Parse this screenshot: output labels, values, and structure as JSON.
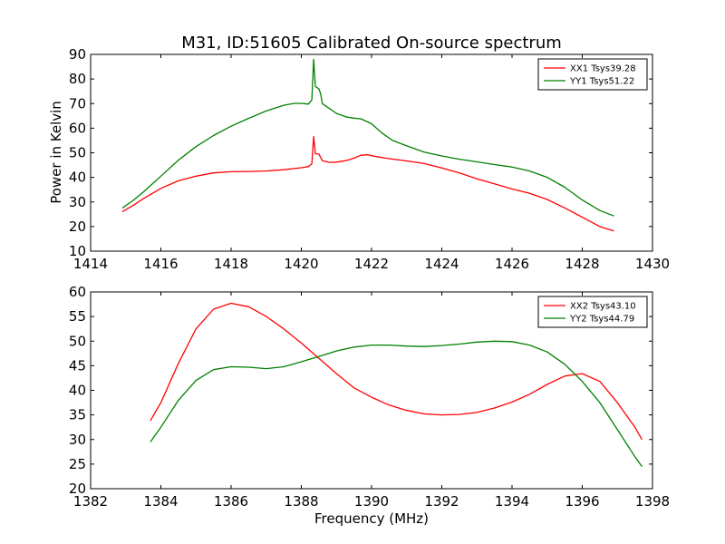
{
  "chart_data": [
    {
      "type": "line",
      "title": "M31, ID:51605 Calibrated On-source spectrum",
      "xlabel": "",
      "ylabel": "Power in Kelvin",
      "xlim": [
        1414,
        1430
      ],
      "ylim": [
        10,
        90
      ],
      "xticks": [
        "1414",
        "1416",
        "1418",
        "1420",
        "1422",
        "1424",
        "1426",
        "1428",
        "1430"
      ],
      "yticks": [
        "10",
        "20",
        "30",
        "40",
        "50",
        "60",
        "70",
        "80",
        "90"
      ],
      "grid": false,
      "legend_position": "top-right",
      "series": [
        {
          "name": "XX1 Tsys39.28",
          "color": "#ff0000",
          "points": [
            [
              1414.9,
              26
            ],
            [
              1415.2,
              28.5
            ],
            [
              1415.5,
              31.3
            ],
            [
              1416.0,
              35.5
            ],
            [
              1416.5,
              38.6
            ],
            [
              1417.0,
              40.5
            ],
            [
              1417.5,
              41.8
            ],
            [
              1418.0,
              42.3
            ],
            [
              1418.5,
              42.4
            ],
            [
              1419.0,
              42.6
            ],
            [
              1419.5,
              43.1
            ],
            [
              1420.0,
              43.9
            ],
            [
              1420.2,
              44.4
            ],
            [
              1420.3,
              45.5
            ],
            [
              1420.35,
              56.6
            ],
            [
              1420.4,
              49.6
            ],
            [
              1420.5,
              49.5
            ],
            [
              1420.6,
              46.8
            ],
            [
              1420.8,
              46.1
            ],
            [
              1421.0,
              46.2
            ],
            [
              1421.3,
              46.9
            ],
            [
              1421.5,
              47.8
            ],
            [
              1421.7,
              49.0
            ],
            [
              1421.9,
              49.2
            ],
            [
              1422.0,
              48.8
            ],
            [
              1422.5,
              47.6
            ],
            [
              1423.0,
              46.7
            ],
            [
              1423.5,
              45.6
            ],
            [
              1424.0,
              43.8
            ],
            [
              1424.5,
              41.8
            ],
            [
              1425.0,
              39.4
            ],
            [
              1425.5,
              37.4
            ],
            [
              1426.0,
              35.3
            ],
            [
              1426.5,
              33.5
            ],
            [
              1427.0,
              31.0
            ],
            [
              1427.5,
              27.6
            ],
            [
              1428.0,
              23.8
            ],
            [
              1428.5,
              20.0
            ],
            [
              1428.9,
              18.2
            ]
          ]
        },
        {
          "name": "YY1 Tsys51.22",
          "color": "#008000",
          "points": [
            [
              1414.9,
              27.5
            ],
            [
              1415.2,
              30.5
            ],
            [
              1415.5,
              34.0
            ],
            [
              1416.0,
              40.5
            ],
            [
              1416.5,
              47.0
            ],
            [
              1417.0,
              52.5
            ],
            [
              1417.5,
              57.0
            ],
            [
              1418.0,
              60.8
            ],
            [
              1418.5,
              64.0
            ],
            [
              1419.0,
              67.0
            ],
            [
              1419.5,
              69.3
            ],
            [
              1419.8,
              70.1
            ],
            [
              1420.0,
              70.1
            ],
            [
              1420.2,
              69.8
            ],
            [
              1420.3,
              71.5
            ],
            [
              1420.35,
              88.0
            ],
            [
              1420.4,
              77.0
            ],
            [
              1420.5,
              76.0
            ],
            [
              1420.55,
              74.0
            ],
            [
              1420.6,
              70.0
            ],
            [
              1420.8,
              68.0
            ],
            [
              1421.0,
              66.0
            ],
            [
              1421.3,
              64.5
            ],
            [
              1421.5,
              64.1
            ],
            [
              1421.7,
              63.8
            ],
            [
              1422.0,
              61.8
            ],
            [
              1422.3,
              58.0
            ],
            [
              1422.6,
              55.0
            ],
            [
              1423.0,
              52.8
            ],
            [
              1423.5,
              50.3
            ],
            [
              1424.0,
              48.7
            ],
            [
              1424.5,
              47.4
            ],
            [
              1425.0,
              46.3
            ],
            [
              1425.5,
              45.2
            ],
            [
              1426.0,
              44.2
            ],
            [
              1426.5,
              42.6
            ],
            [
              1427.0,
              40.0
            ],
            [
              1427.5,
              36.0
            ],
            [
              1428.0,
              30.8
            ],
            [
              1428.5,
              26.5
            ],
            [
              1428.9,
              24.3
            ]
          ]
        }
      ]
    },
    {
      "type": "line",
      "title": "",
      "xlabel": "Frequency (MHz)",
      "ylabel": "",
      "xlim": [
        1382,
        1398
      ],
      "ylim": [
        20,
        60
      ],
      "xticks": [
        "1382",
        "1384",
        "1386",
        "1388",
        "1390",
        "1392",
        "1394",
        "1396",
        "1398"
      ],
      "yticks": [
        "20",
        "25",
        "30",
        "35",
        "40",
        "45",
        "50",
        "55",
        "60"
      ],
      "grid": false,
      "legend_position": "top-right",
      "series": [
        {
          "name": "XX2 Tsys43.10",
          "color": "#ff0000",
          "points": [
            [
              1383.7,
              33.8
            ],
            [
              1384.0,
              37.5
            ],
            [
              1384.5,
              45.5
            ],
            [
              1385.0,
              52.5
            ],
            [
              1385.5,
              56.5
            ],
            [
              1386.0,
              57.7
            ],
            [
              1386.5,
              57.0
            ],
            [
              1387.0,
              55.0
            ],
            [
              1387.5,
              52.5
            ],
            [
              1388.0,
              49.6
            ],
            [
              1388.5,
              46.5
            ],
            [
              1389.0,
              43.4
            ],
            [
              1389.5,
              40.5
            ],
            [
              1390.0,
              38.6
            ],
            [
              1390.5,
              37.0
            ],
            [
              1391.0,
              35.9
            ],
            [
              1391.5,
              35.2
            ],
            [
              1392.0,
              35.0
            ],
            [
              1392.5,
              35.1
            ],
            [
              1393.0,
              35.5
            ],
            [
              1393.5,
              36.4
            ],
            [
              1394.0,
              37.6
            ],
            [
              1394.5,
              39.2
            ],
            [
              1395.0,
              41.2
            ],
            [
              1395.5,
              42.9
            ],
            [
              1396.0,
              43.4
            ],
            [
              1396.5,
              41.8
            ],
            [
              1397.0,
              37.5
            ],
            [
              1397.5,
              32.5
            ],
            [
              1397.7,
              30.0
            ]
          ]
        },
        {
          "name": "YY2 Tsys44.79",
          "color": "#008000",
          "points": [
            [
              1383.7,
              29.5
            ],
            [
              1384.0,
              32.5
            ],
            [
              1384.5,
              38.0
            ],
            [
              1385.0,
              42.0
            ],
            [
              1385.5,
              44.2
            ],
            [
              1386.0,
              44.8
            ],
            [
              1386.5,
              44.7
            ],
            [
              1387.0,
              44.4
            ],
            [
              1387.5,
              44.8
            ],
            [
              1388.0,
              45.8
            ],
            [
              1388.5,
              46.9
            ],
            [
              1389.0,
              48.0
            ],
            [
              1389.5,
              48.8
            ],
            [
              1390.0,
              49.2
            ],
            [
              1390.5,
              49.2
            ],
            [
              1391.0,
              49.0
            ],
            [
              1391.5,
              48.9
            ],
            [
              1392.0,
              49.1
            ],
            [
              1392.5,
              49.4
            ],
            [
              1393.0,
              49.8
            ],
            [
              1393.5,
              50.0
            ],
            [
              1394.0,
              49.9
            ],
            [
              1394.5,
              49.2
            ],
            [
              1395.0,
              47.8
            ],
            [
              1395.5,
              45.3
            ],
            [
              1396.0,
              41.8
            ],
            [
              1396.5,
              37.5
            ],
            [
              1397.0,
              32.0
            ],
            [
              1397.5,
              26.5
            ],
            [
              1397.7,
              24.5
            ]
          ]
        }
      ]
    }
  ]
}
